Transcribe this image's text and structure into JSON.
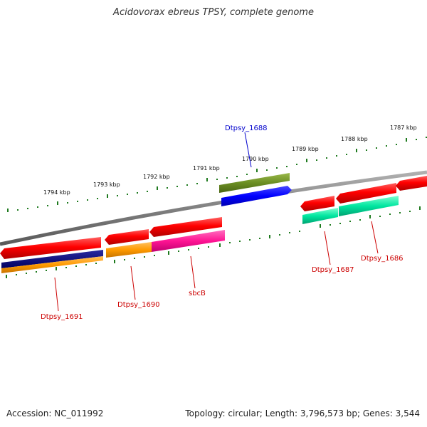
{
  "title": "Acidovorax ebreus TPSY, complete genome",
  "footer": {
    "accession": "Accession: NC_011992",
    "summary": "Topology: circular; Length: 3,796,573 bp; Genes: 3,544"
  },
  "colors": {
    "backbone": "#8a8a8a",
    "ticks": "#1e7a1e",
    "gene_label_default": "#cc0000",
    "gene_label_highlight": "#0000cc"
  },
  "scale_labels": [
    "1794 kbp",
    "1793 kbp",
    "1792 kbp",
    "1791 kbp",
    "1790 kbp",
    "1789 kbp",
    "1788 kbp",
    "1787 kbp"
  ],
  "gene_labels": [
    {
      "text": "Dtpsy_1688",
      "color": "#0000cc"
    },
    {
      "text": "Dtpsy_1691",
      "color": "#cc0000"
    },
    {
      "text": "Dtpsy_1690",
      "color": "#cc0000"
    },
    {
      "text": "sbcB",
      "color": "#cc0000"
    },
    {
      "text": "Dtpsy_1687",
      "color": "#cc0000"
    },
    {
      "text": "Dtpsy_1686",
      "color": "#cc0000"
    }
  ]
}
